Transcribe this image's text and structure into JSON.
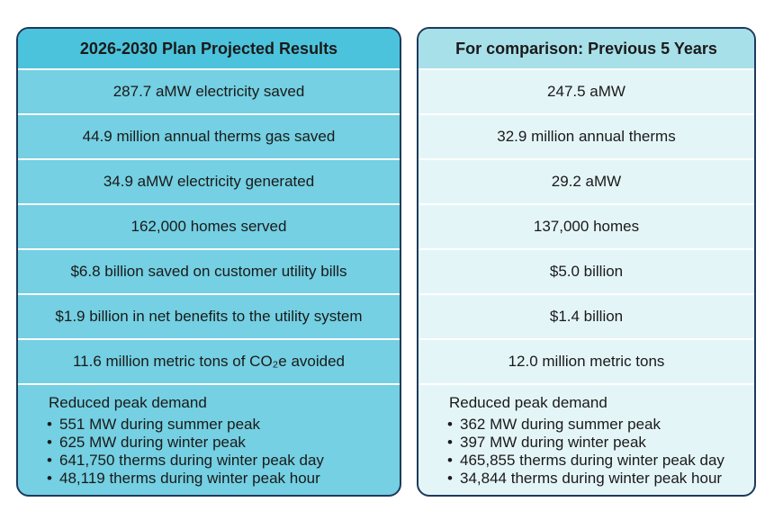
{
  "left": {
    "title": "2026-2030 Plan Projected Results",
    "rows": [
      "287.7 aMW electricity saved",
      "44.9 million annual therms gas saved",
      "34.9 aMW electricity generated",
      "162,000 homes served",
      "$6.8 billion saved on customer utility bills",
      "$1.9 billion in net benefits to the utility system",
      "11.6 million metric tons of CO₂e avoided"
    ],
    "peak": {
      "heading": "Reduced peak demand",
      "items": [
        "551 MW during summer peak",
        "625 MW during winter peak",
        "641,750 therms during winter peak day",
        "48,119 therms during winter peak hour"
      ]
    }
  },
  "right": {
    "title": "For comparison: Previous 5 Years",
    "rows": [
      "247.5 aMW",
      "32.9 million annual therms",
      "29.2 aMW",
      "137,000 homes",
      "$5.0 billion",
      "$1.4 billion",
      "12.0 million metric tons"
    ],
    "peak": {
      "heading": "Reduced peak demand",
      "items": [
        "362 MW during summer peak",
        "397 MW during winter peak",
        "465,855 therms during winter peak day",
        "34,844 therms during winter peak hour"
      ]
    }
  }
}
